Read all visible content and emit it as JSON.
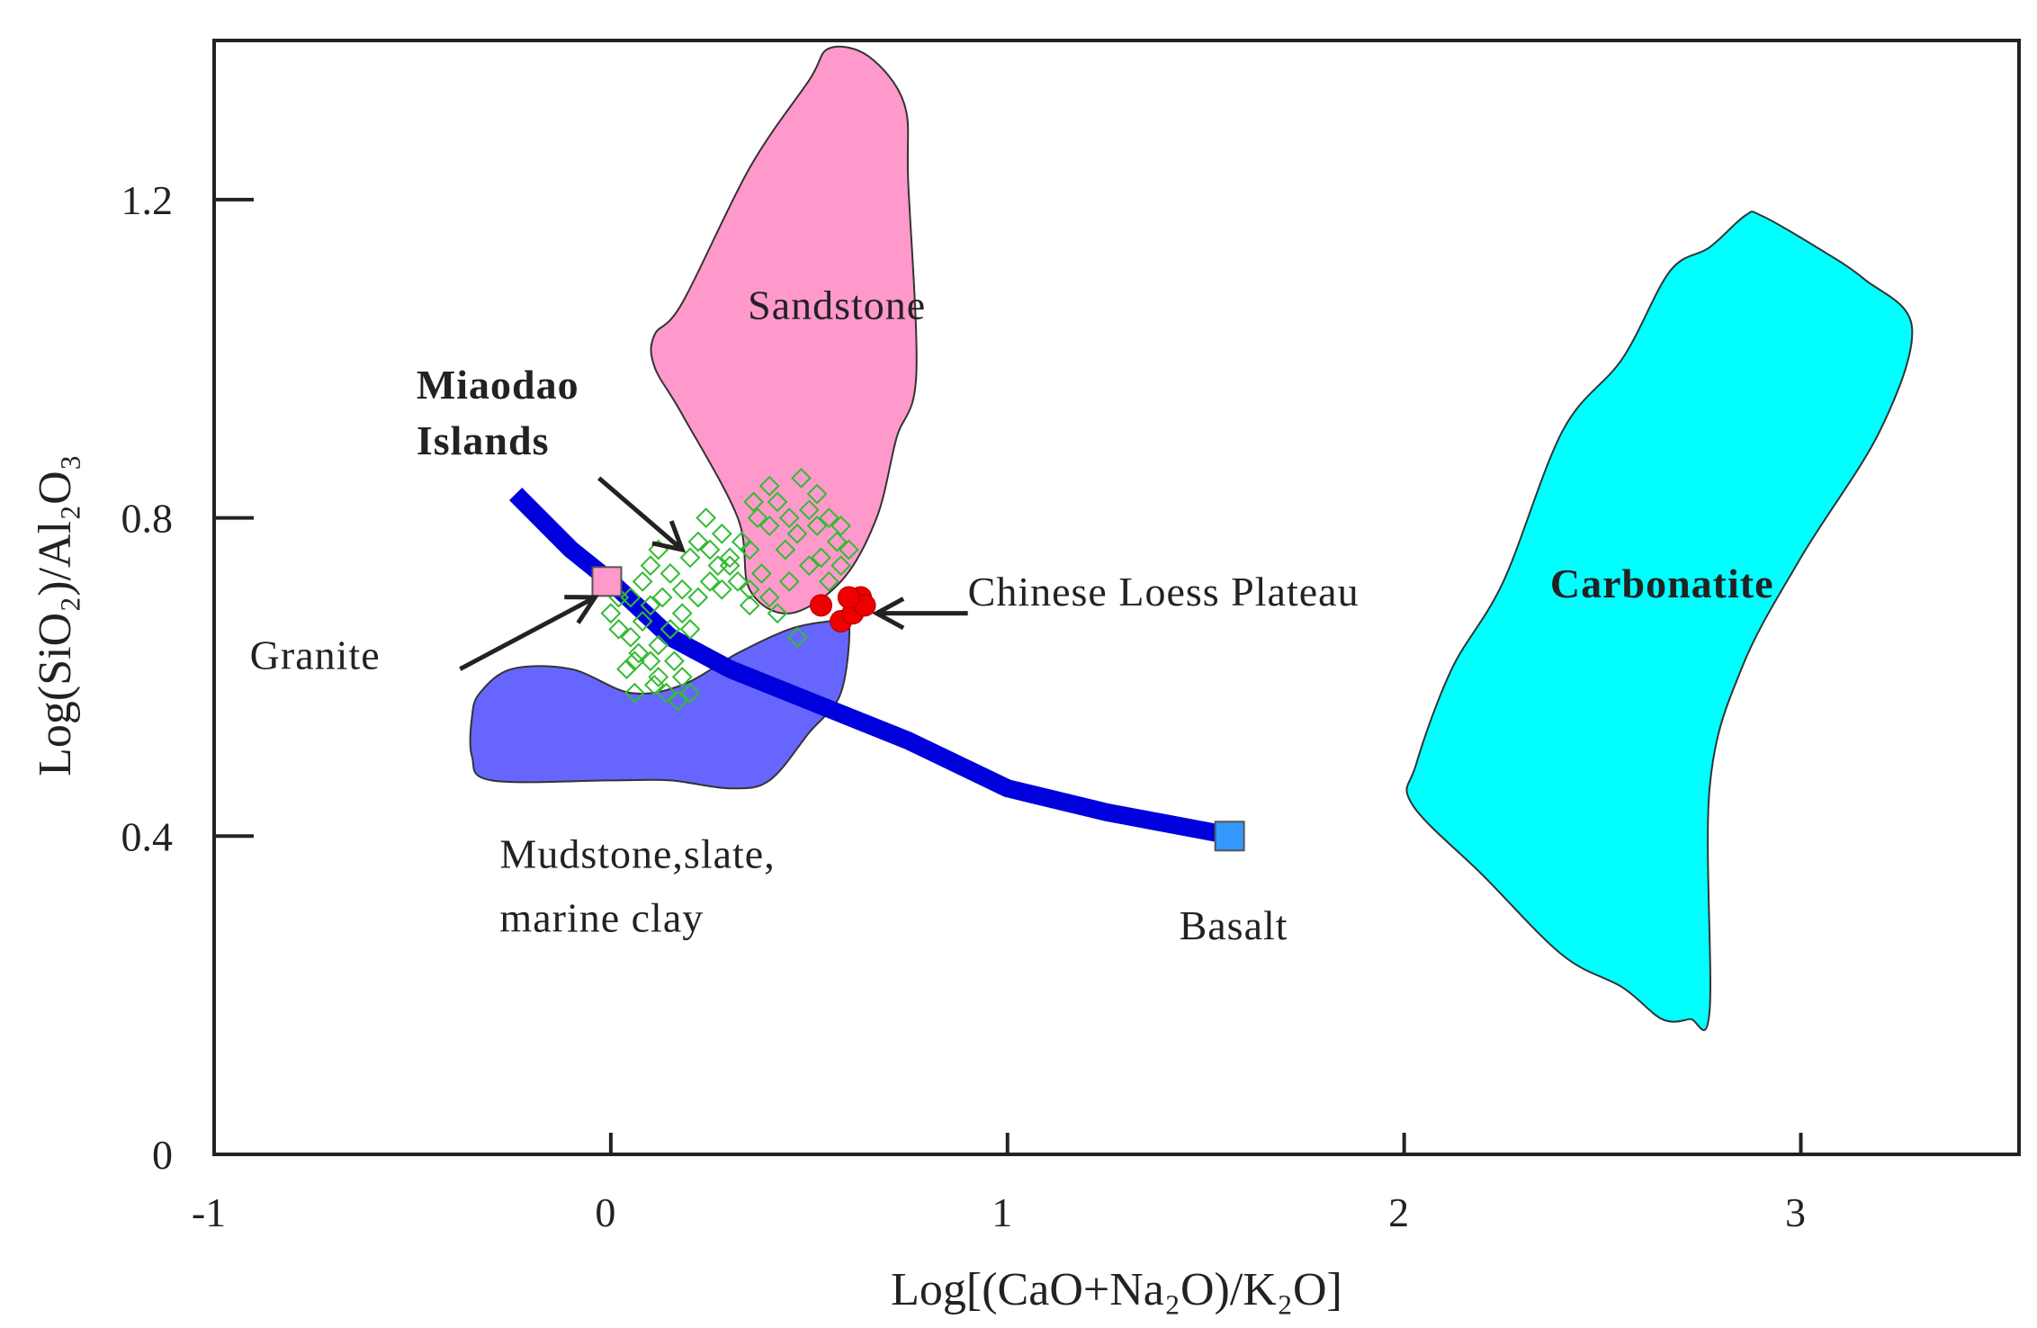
{
  "chart_data": {
    "type": "scatter",
    "xlabel": "Log[(CaO+Na₂O)/K₂O]",
    "ylabel": "Log(SiO₂)/Al₂O₃",
    "xlim": [
      -1,
      3.55
    ],
    "ylim": [
      0,
      1.4
    ],
    "xticks": [
      -1,
      0,
      1,
      2,
      3
    ],
    "xtick_labels": [
      "-1",
      "0",
      "1",
      "2",
      "3"
    ],
    "yticks": [
      0,
      0.4,
      0.8,
      1.2
    ],
    "ytick_labels": [
      "0",
      "0.4",
      "0.8",
      "1.2"
    ],
    "grid": false,
    "regions": [
      {
        "name": "Sandstone",
        "color": "#ff99cc",
        "polygon": [
          [
            0.55,
            1.39
          ],
          [
            0.65,
            1.38
          ],
          [
            0.74,
            1.32
          ],
          [
            0.75,
            1.22
          ],
          [
            0.77,
            0.98
          ],
          [
            0.72,
            0.9
          ],
          [
            0.67,
            0.8
          ],
          [
            0.58,
            0.72
          ],
          [
            0.45,
            0.68
          ],
          [
            0.35,
            0.71
          ],
          [
            0.32,
            0.8
          ],
          [
            0.18,
            0.93
          ],
          [
            0.11,
            0.99
          ],
          [
            0.11,
            1.03
          ],
          [
            0.18,
            1.07
          ],
          [
            0.35,
            1.24
          ],
          [
            0.5,
            1.35
          ]
        ]
      },
      {
        "name": "Mudstone,slate, marine clay",
        "color": "#6666ff",
        "polygon": [
          [
            -0.35,
            0.55
          ],
          [
            -0.33,
            0.58
          ],
          [
            -0.25,
            0.61
          ],
          [
            -0.1,
            0.61
          ],
          [
            0.05,
            0.58
          ],
          [
            0.18,
            0.59
          ],
          [
            0.32,
            0.63
          ],
          [
            0.45,
            0.66
          ],
          [
            0.55,
            0.67
          ],
          [
            0.6,
            0.67
          ],
          [
            0.58,
            0.58
          ],
          [
            0.5,
            0.53
          ],
          [
            0.4,
            0.47
          ],
          [
            0.3,
            0.46
          ],
          [
            0.15,
            0.47
          ],
          [
            0.0,
            0.47
          ],
          [
            -0.3,
            0.47
          ],
          [
            -0.35,
            0.5
          ]
        ]
      },
      {
        "name": "Carbonatite",
        "color": "#00ffff",
        "polygon": [
          [
            2.9,
            1.18
          ],
          [
            3.04,
            1.14
          ],
          [
            3.16,
            1.1
          ],
          [
            3.28,
            1.04
          ],
          [
            3.2,
            0.91
          ],
          [
            3.0,
            0.75
          ],
          [
            2.85,
            0.61
          ],
          [
            2.77,
            0.46
          ],
          [
            2.77,
            0.18
          ],
          [
            2.72,
            0.17
          ],
          [
            2.65,
            0.17
          ],
          [
            2.55,
            0.21
          ],
          [
            2.4,
            0.25
          ],
          [
            2.2,
            0.35
          ],
          [
            2.02,
            0.44
          ],
          [
            2.03,
            0.49
          ],
          [
            2.12,
            0.61
          ],
          [
            2.25,
            0.72
          ],
          [
            2.4,
            0.91
          ],
          [
            2.55,
            1.0
          ],
          [
            2.67,
            1.11
          ],
          [
            2.77,
            1.14
          ],
          [
            2.86,
            1.18
          ]
        ]
      }
    ],
    "mixing_line": {
      "color": "#0000dd",
      "points": [
        [
          -0.24,
          0.83
        ],
        [
          -0.1,
          0.76
        ],
        [
          0.0,
          0.72
        ],
        [
          0.15,
          0.65
        ],
        [
          0.3,
          0.61
        ],
        [
          0.5,
          0.57
        ],
        [
          0.75,
          0.52
        ],
        [
          1.0,
          0.46
        ],
        [
          1.25,
          0.43
        ],
        [
          1.57,
          0.4
        ]
      ]
    },
    "series": [
      {
        "name": "Miaodao Islands",
        "marker": "diamond-open",
        "color": "#33bb33",
        "points": [
          [
            0.0,
            0.68
          ],
          [
            0.02,
            0.66
          ],
          [
            0.05,
            0.65
          ],
          [
            0.07,
            0.63
          ],
          [
            0.1,
            0.62
          ],
          [
            0.12,
            0.6
          ],
          [
            0.14,
            0.58
          ],
          [
            0.17,
            0.57
          ],
          [
            0.2,
            0.58
          ],
          [
            0.05,
            0.7
          ],
          [
            0.08,
            0.72
          ],
          [
            0.1,
            0.74
          ],
          [
            0.12,
            0.76
          ],
          [
            0.15,
            0.73
          ],
          [
            0.18,
            0.71
          ],
          [
            0.2,
            0.75
          ],
          [
            0.22,
            0.77
          ],
          [
            0.25,
            0.76
          ],
          [
            0.27,
            0.74
          ],
          [
            0.3,
            0.75
          ],
          [
            0.32,
            0.72
          ],
          [
            0.35,
            0.76
          ],
          [
            0.37,
            0.8
          ],
          [
            0.4,
            0.79
          ],
          [
            0.42,
            0.82
          ],
          [
            0.45,
            0.8
          ],
          [
            0.47,
            0.78
          ],
          [
            0.5,
            0.81
          ],
          [
            0.52,
            0.79
          ],
          [
            0.55,
            0.8
          ],
          [
            0.57,
            0.77
          ],
          [
            0.6,
            0.76
          ],
          [
            0.58,
            0.74
          ],
          [
            0.55,
            0.72
          ],
          [
            0.5,
            0.74
          ],
          [
            0.45,
            0.72
          ],
          [
            0.4,
            0.7
          ],
          [
            0.38,
            0.73
          ],
          [
            0.35,
            0.71
          ],
          [
            0.3,
            0.74
          ],
          [
            0.25,
            0.72
          ],
          [
            0.22,
            0.7
          ],
          [
            0.18,
            0.68
          ],
          [
            0.15,
            0.66
          ],
          [
            0.12,
            0.64
          ],
          [
            0.1,
            0.69
          ],
          [
            0.08,
            0.67
          ],
          [
            0.04,
            0.61
          ],
          [
            0.06,
            0.62
          ],
          [
            0.13,
            0.7
          ],
          [
            0.48,
            0.85
          ],
          [
            0.52,
            0.83
          ],
          [
            0.4,
            0.84
          ],
          [
            0.44,
            0.76
          ],
          [
            0.33,
            0.77
          ],
          [
            0.28,
            0.78
          ],
          [
            0.47,
            0.65
          ],
          [
            0.35,
            0.69
          ],
          [
            0.2,
            0.66
          ],
          [
            0.16,
            0.62
          ],
          [
            0.11,
            0.59
          ],
          [
            0.24,
            0.8
          ],
          [
            0.42,
            0.68
          ],
          [
            0.53,
            0.75
          ],
          [
            0.58,
            0.79
          ],
          [
            0.36,
            0.82
          ],
          [
            0.28,
            0.71
          ],
          [
            0.02,
            0.7
          ],
          [
            0.06,
            0.58
          ],
          [
            0.18,
            0.6
          ]
        ]
      },
      {
        "name": "Chinese Loess Plateau",
        "marker": "circle-filled",
        "color": "#ee0000",
        "points": [
          [
            0.53,
            0.69
          ],
          [
            0.58,
            0.67
          ],
          [
            0.61,
            0.68
          ],
          [
            0.63,
            0.7
          ],
          [
            0.64,
            0.69
          ],
          [
            0.6,
            0.7
          ]
        ]
      },
      {
        "name": "Granite",
        "marker": "square-filled",
        "color": "#ff99cc",
        "points": [
          [
            -0.01,
            0.72
          ]
        ]
      },
      {
        "name": "Basalt",
        "marker": "square-filled",
        "color": "#3399ff",
        "points": [
          [
            1.56,
            0.4
          ]
        ]
      }
    ],
    "annotations": [
      {
        "key": "sandstone",
        "text": "Sandstone",
        "x": 0.57,
        "y": 1.05,
        "anchor": "middle",
        "bold": false
      },
      {
        "key": "miaodao1",
        "text": "Miaodao",
        "x": -0.49,
        "y": 0.95,
        "anchor": "start",
        "bold": true
      },
      {
        "key": "miaodao2",
        "text": "Islands",
        "x": -0.49,
        "y": 0.88,
        "anchor": "start",
        "bold": true
      },
      {
        "key": "loess",
        "text": "Chinese Loess Plateau",
        "x": 0.9,
        "y": 0.69,
        "anchor": "start",
        "bold": false
      },
      {
        "key": "carbonatite",
        "text": "Carbonatite",
        "x": 2.65,
        "y": 0.7,
        "anchor": "middle",
        "bold": true
      },
      {
        "key": "granite",
        "text": "Granite",
        "x": -0.91,
        "y": 0.61,
        "anchor": "start",
        "bold": false
      },
      {
        "key": "mudstone1",
        "text": "Mudstone,slate,",
        "x": -0.28,
        "y": 0.36,
        "anchor": "start",
        "bold": false
      },
      {
        "key": "mudstone2",
        "text": "marine clay",
        "x": -0.28,
        "y": 0.28,
        "anchor": "start",
        "bold": false
      },
      {
        "key": "basalt",
        "text": "Basalt",
        "x": 1.57,
        "y": 0.27,
        "anchor": "middle",
        "bold": false
      }
    ],
    "arrows": [
      {
        "from": [
          -0.03,
          0.85
        ],
        "to": [
          0.18,
          0.76
        ]
      },
      {
        "from": [
          -0.38,
          0.61
        ],
        "to": [
          -0.04,
          0.7
        ]
      },
      {
        "from": [
          0.9,
          0.68
        ],
        "to": [
          0.67,
          0.68
        ]
      }
    ]
  }
}
